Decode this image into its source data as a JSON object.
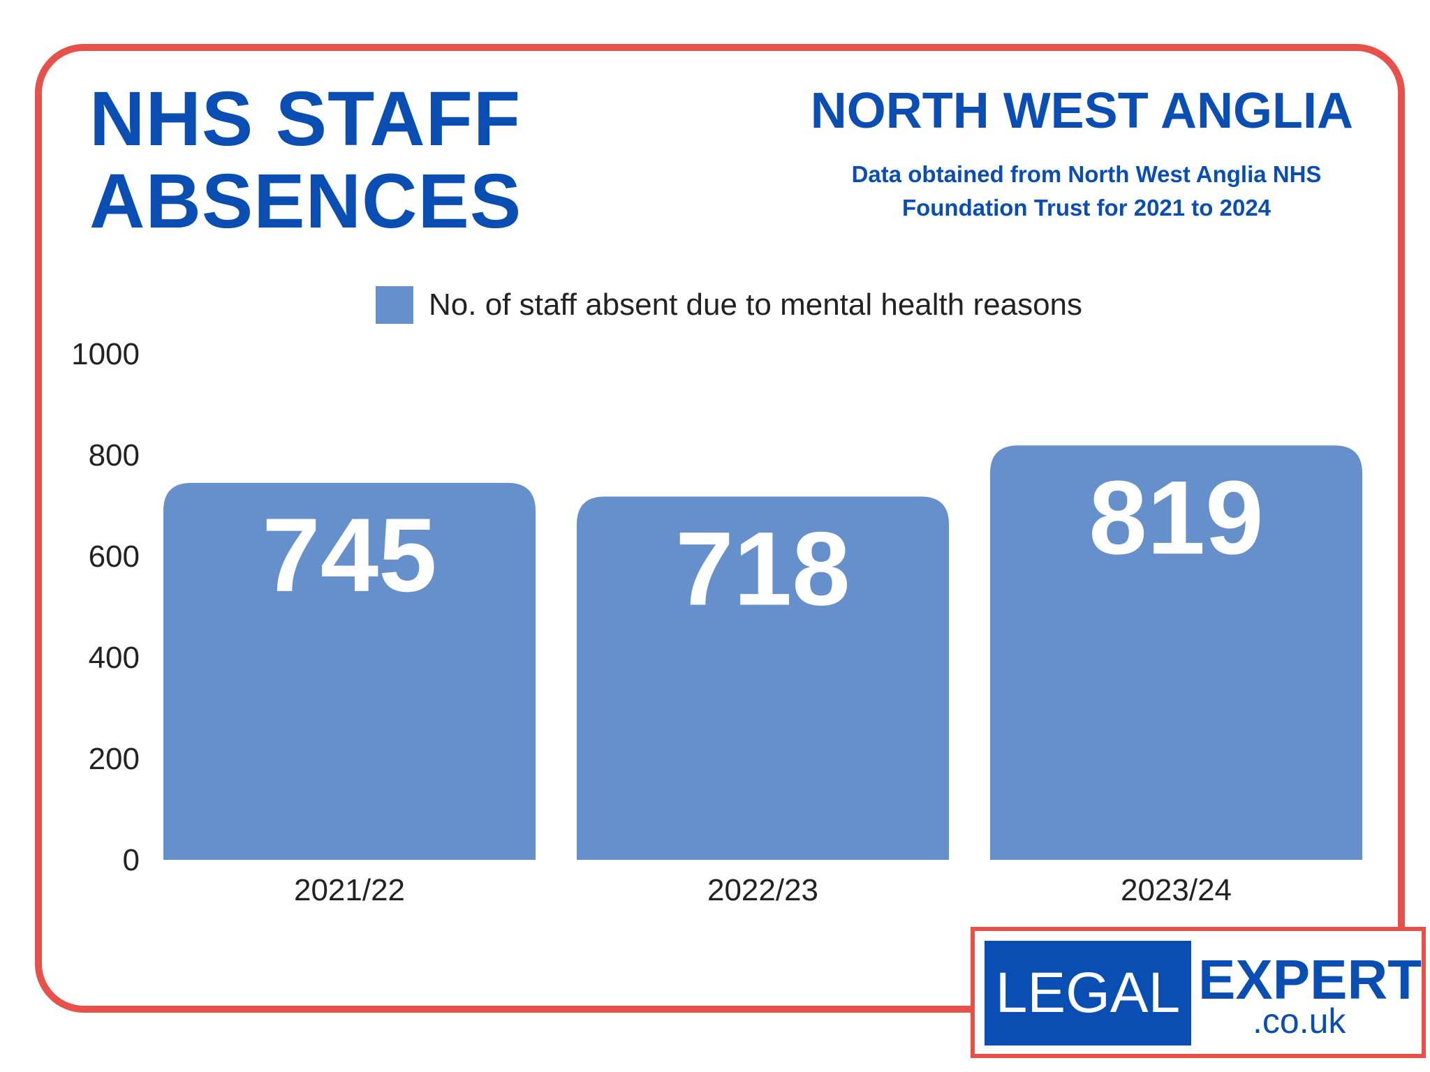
{
  "title_lines": [
    "NHS STAFF",
    "ABSENCES"
  ],
  "region": "NORTH WEST ANGLIA",
  "source_lines": [
    "Data obtained from North West Anglia NHS",
    "Foundation Trust for 2021 to 2024"
  ],
  "logo": {
    "left": "LEGAL",
    "right": "EXPERT",
    "domain": ".co.uk"
  },
  "colors": {
    "bar": "#6690cc",
    "accent": "#0a4db3",
    "frame": "#e8504a"
  },
  "chart_data": {
    "type": "bar",
    "categories": [
      "2021/22",
      "2022/23",
      "2023/24"
    ],
    "series": [
      {
        "name": "No. of staff absent due to mental health reasons",
        "values": [
          745,
          718,
          819
        ]
      }
    ],
    "data_labels": [
      "745",
      "718",
      "819"
    ],
    "yticks": [
      "0",
      "200",
      "400",
      "600",
      "800",
      "1000"
    ],
    "ylim": [
      0,
      1000
    ],
    "legend": "top-center",
    "grid": false
  }
}
